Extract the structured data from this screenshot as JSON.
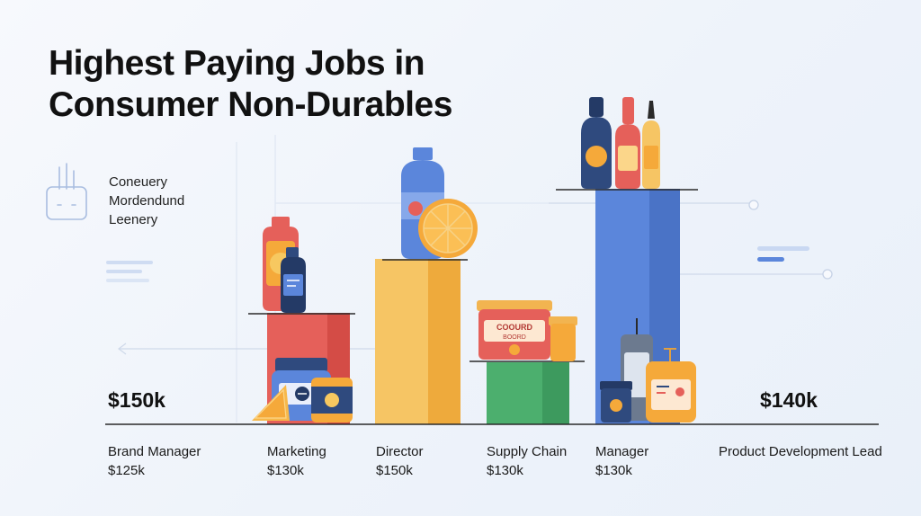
{
  "title_lines": [
    "Highest Paying Jobs in",
    "Consumer Non-Durables"
  ],
  "legend": [
    "Coneuery",
    "Mordendund",
    "Leenery"
  ],
  "annotations": {
    "left": "$150k",
    "right": "$140k"
  },
  "can_label": [
    "COOURD",
    "BOORD"
  ],
  "colors": {
    "red": "#e5605a",
    "yellow": "#f2b450",
    "green": "#4caf6e",
    "blue": "#5b86db",
    "navy": "#243a66",
    "orange": "#f5a93a"
  },
  "chart_data": {
    "type": "bar",
    "title": "Highest Paying Jobs in Consumer Non-Durables",
    "categories": [
      "Brand Manager",
      "Marketing",
      "Director",
      "Supply Chain",
      "Manager",
      "Product Development Lead"
    ],
    "value_labels": [
      "$125k",
      "$130k",
      "$150k",
      "$130k",
      "$130k",
      ""
    ],
    "bars": [
      {
        "category": "Marketing",
        "color": "red"
      },
      {
        "category": "Director",
        "color": "yellow"
      },
      {
        "category": "Supply Chain",
        "color": "green"
      },
      {
        "category": "Manager",
        "color": "blue"
      }
    ],
    "grid": false,
    "legend_position": "left"
  }
}
